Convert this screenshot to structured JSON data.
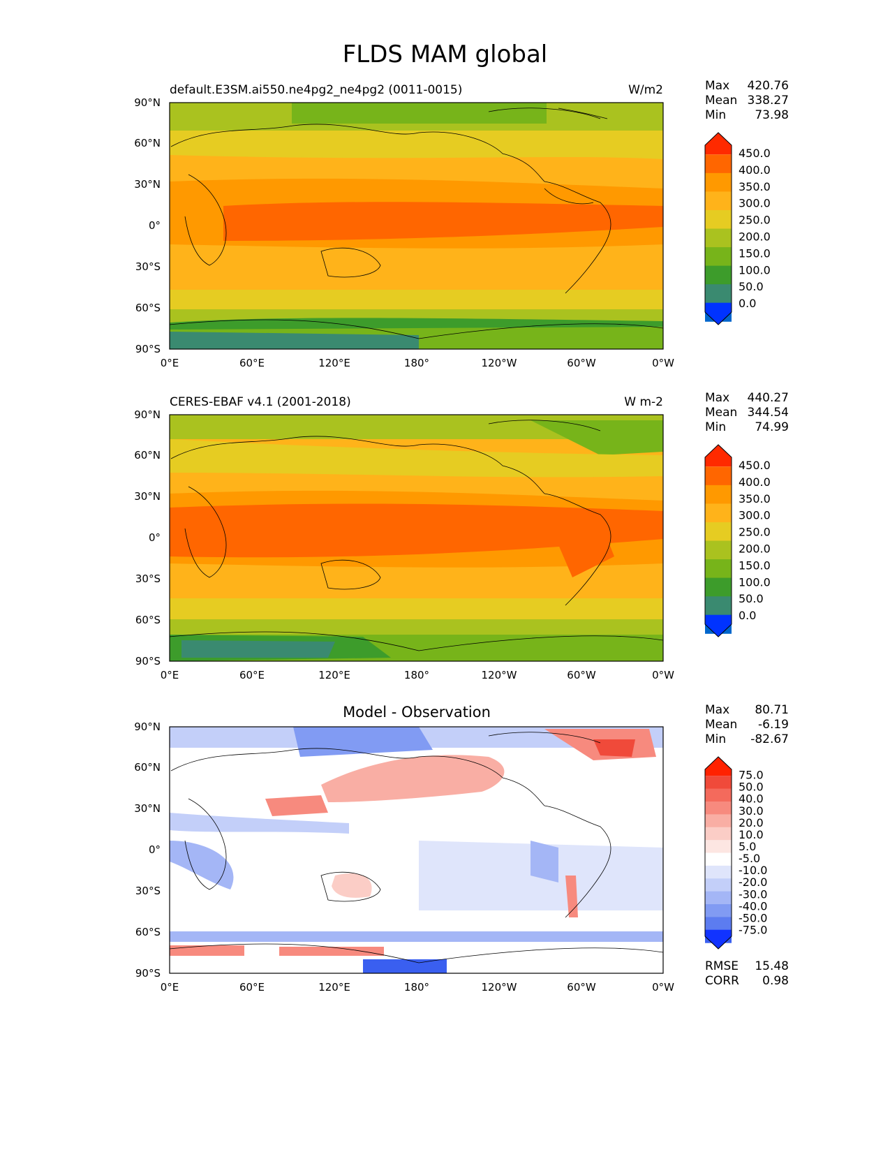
{
  "figure": {
    "title": "FLDS MAM global"
  },
  "panels": [
    {
      "title_left": "default.E3SM.ai550.ne4pg2_ne4pg2 (0011-0015)",
      "title_right": "W/m2",
      "title_center": "",
      "stats": {
        "labels": [
          "Max",
          "Mean",
          "Min"
        ],
        "values": [
          "420.76",
          "338.27",
          "73.98"
        ]
      },
      "colorbar": {
        "ticks": [
          "450.0",
          "400.0",
          "350.0",
          "300.0",
          "250.0",
          "200.0",
          "150.0",
          "100.0",
          "50.0",
          "0.0"
        ],
        "colors": [
          "#ff2a00",
          "#ff6600",
          "#ff9900",
          "#ffb31a",
          "#e6cc22",
          "#aac21f",
          "#77b41a",
          "#3d9c2b",
          "#3a8a70",
          "#0066cc",
          "#0033ff"
        ]
      },
      "metrics": null
    },
    {
      "title_left": "CERES-EBAF v4.1 (2001-2018)",
      "title_right": "W m-2",
      "title_center": "",
      "stats": {
        "labels": [
          "Max",
          "Mean",
          "Min"
        ],
        "values": [
          "440.27",
          "344.54",
          "74.99"
        ]
      },
      "colorbar": {
        "ticks": [
          "450.0",
          "400.0",
          "350.0",
          "300.0",
          "250.0",
          "200.0",
          "150.0",
          "100.0",
          "50.0",
          "0.0"
        ],
        "colors": [
          "#ff2a00",
          "#ff6600",
          "#ff9900",
          "#ffb31a",
          "#e6cc22",
          "#aac21f",
          "#77b41a",
          "#3d9c2b",
          "#3a8a70",
          "#0066cc",
          "#0033ff"
        ]
      },
      "metrics": null
    },
    {
      "title_left": "",
      "title_right": "",
      "title_center": "Model - Observation",
      "stats": {
        "labels": [
          "Max",
          "Mean",
          "Min"
        ],
        "values": [
          "80.71",
          "-6.19",
          "-82.67"
        ]
      },
      "colorbar": {
        "ticks": [
          "75.0",
          "50.0",
          "40.0",
          "30.0",
          "20.0",
          "10.0",
          "5.0",
          "-5.0",
          "-10.0",
          "-20.0",
          "-30.0",
          "-40.0",
          "-50.0",
          "-75.0"
        ],
        "colors": [
          "#ff2200",
          "#f04a3a",
          "#f46a5c",
          "#f78a7e",
          "#f9aea4",
          "#fbcdc6",
          "#fde6e2",
          "#ffffff",
          "#dfe5fb",
          "#c3cff9",
          "#a4b6f6",
          "#819bf3",
          "#5c7cf0",
          "#3a5ff0",
          "#1133ff"
        ]
      },
      "metrics": {
        "labels": [
          "RMSE",
          "CORR"
        ],
        "values": [
          "15.48",
          "0.98"
        ]
      }
    }
  ],
  "axes": {
    "lat_labels": [
      "90°N",
      "60°N",
      "30°N",
      "0°",
      "30°S",
      "60°S",
      "90°S"
    ],
    "lon_labels": [
      "0°E",
      "60°E",
      "120°E",
      "180°",
      "120°W",
      "60°W",
      "0°W"
    ]
  }
}
